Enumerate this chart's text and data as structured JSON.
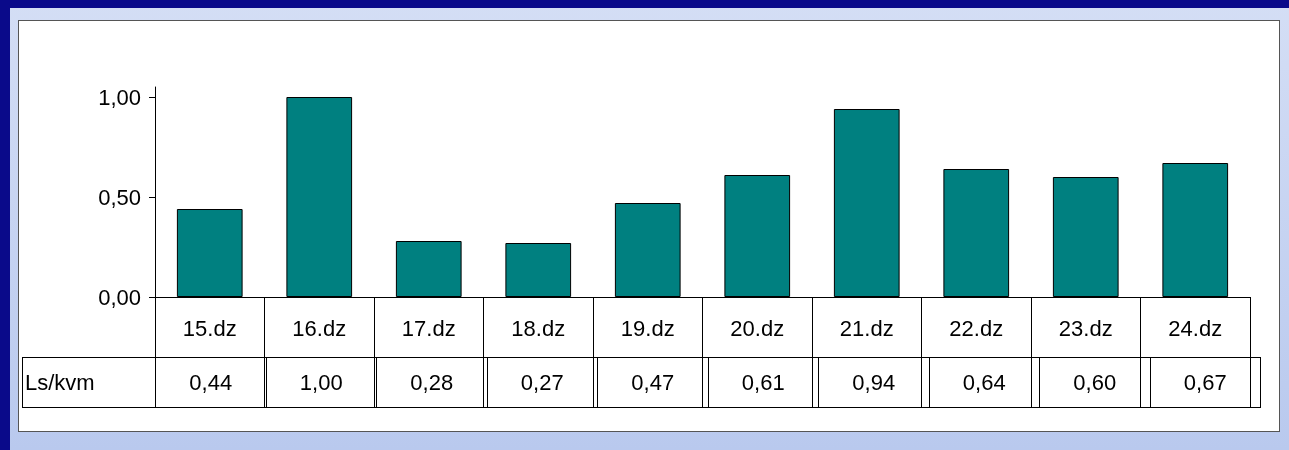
{
  "chart_data": {
    "type": "bar",
    "categories": [
      "15.dz",
      "16.dz",
      "17.dz",
      "18.dz",
      "19.dz",
      "20.dz",
      "21.dz",
      "22.dz",
      "23.dz",
      "24.dz"
    ],
    "series": [
      {
        "name": "Ls/kvm",
        "color": "#008080",
        "values": [
          0.44,
          1.0,
          0.28,
          0.27,
          0.47,
          0.61,
          0.94,
          0.64,
          0.6,
          0.67
        ],
        "value_labels": [
          "0,44",
          "1,00",
          "0,28",
          "0,27",
          "0,47",
          "0,61",
          "0,94",
          "0,64",
          "0,60",
          "0,67"
        ]
      }
    ],
    "ylim": [
      0,
      1.05
    ],
    "yticks": [
      {
        "value": 0,
        "label": "0,00"
      },
      {
        "value": 0.5,
        "label": "0,50"
      },
      {
        "value": 1,
        "label": "1,00"
      }
    ]
  }
}
